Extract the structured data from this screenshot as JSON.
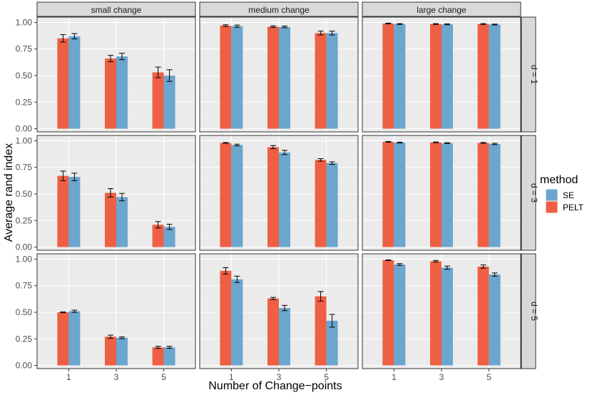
{
  "chart_data": {
    "type": "bar",
    "title": "",
    "xlabel": "Number of Change−points",
    "ylabel": "Average rand index",
    "categories": [
      "1",
      "3",
      "5"
    ],
    "yticks": [
      "0.00",
      "0.25",
      "0.50",
      "0.75",
      "1.00"
    ],
    "ylim": [
      -0.03,
      1.05
    ],
    "columns": [
      "small change",
      "medium change",
      "large change"
    ],
    "rows": [
      "d = 1",
      "d = 3",
      "d = 5"
    ],
    "legend": {
      "title": "method",
      "position": "right",
      "entries": [
        {
          "name": "SE",
          "color": "#6BA6CF"
        },
        {
          "name": "PELT",
          "color": "#EE5F44"
        }
      ]
    },
    "panels": [
      {
        "row": "d = 1",
        "column": "small change",
        "series": [
          {
            "name": "PELT",
            "values": [
              0.85,
              0.66,
              0.53
            ],
            "errors": [
              0.035,
              0.03,
              0.05
            ]
          },
          {
            "name": "SE",
            "values": [
              0.87,
              0.68,
              0.5
            ],
            "errors": [
              0.025,
              0.03,
              0.055
            ]
          }
        ]
      },
      {
        "row": "d = 1",
        "column": "medium change",
        "series": [
          {
            "name": "PELT",
            "values": [
              0.97,
              0.96,
              0.9
            ],
            "errors": [
              0.008,
              0.008,
              0.018
            ]
          },
          {
            "name": "SE",
            "values": [
              0.965,
              0.958,
              0.9
            ],
            "errors": [
              0.01,
              0.008,
              0.018
            ]
          }
        ]
      },
      {
        "row": "d = 1",
        "column": "large change",
        "series": [
          {
            "name": "PELT",
            "values": [
              0.99,
              0.985,
              0.985
            ],
            "errors": [
              0.004,
              0.004,
              0.004
            ]
          },
          {
            "name": "SE",
            "values": [
              0.985,
              0.982,
              0.98
            ],
            "errors": [
              0.004,
              0.004,
              0.004
            ]
          }
        ]
      },
      {
        "row": "d = 3",
        "column": "small change",
        "series": [
          {
            "name": "PELT",
            "values": [
              0.67,
              0.51,
              0.21
            ],
            "errors": [
              0.045,
              0.04,
              0.03
            ]
          },
          {
            "name": "SE",
            "values": [
              0.66,
              0.47,
              0.19
            ],
            "errors": [
              0.035,
              0.035,
              0.025
            ]
          }
        ]
      },
      {
        "row": "d = 3",
        "column": "medium change",
        "series": [
          {
            "name": "PELT",
            "values": [
              0.98,
              0.94,
              0.82
            ],
            "errors": [
              0.004,
              0.015,
              0.012
            ]
          },
          {
            "name": "SE",
            "values": [
              0.96,
              0.89,
              0.79
            ],
            "errors": [
              0.008,
              0.02,
              0.012
            ]
          }
        ]
      },
      {
        "row": "d = 3",
        "column": "large change",
        "series": [
          {
            "name": "PELT",
            "values": [
              0.99,
              0.985,
              0.98
            ],
            "errors": [
              0.004,
              0.004,
              0.004
            ]
          },
          {
            "name": "SE",
            "values": [
              0.983,
              0.978,
              0.97
            ],
            "errors": [
              0.004,
              0.004,
              0.006
            ]
          }
        ]
      },
      {
        "row": "d = 5",
        "column": "small change",
        "series": [
          {
            "name": "PELT",
            "values": [
              0.5,
              0.27,
              0.17
            ],
            "errors": [
              0.004,
              0.015,
              0.01
            ]
          },
          {
            "name": "SE",
            "values": [
              0.51,
              0.26,
              0.17
            ],
            "errors": [
              0.01,
              0.008,
              0.01
            ]
          }
        ]
      },
      {
        "row": "d = 5",
        "column": "medium change",
        "series": [
          {
            "name": "PELT",
            "values": [
              0.89,
              0.63,
              0.65
            ],
            "errors": [
              0.03,
              0.01,
              0.045
            ]
          },
          {
            "name": "SE",
            "values": [
              0.81,
              0.54,
              0.42
            ],
            "errors": [
              0.03,
              0.025,
              0.06
            ]
          }
        ]
      },
      {
        "row": "d = 5",
        "column": "large change",
        "series": [
          {
            "name": "PELT",
            "values": [
              0.99,
              0.98,
              0.93
            ],
            "errors": [
              0.004,
              0.008,
              0.015
            ]
          },
          {
            "name": "SE",
            "values": [
              0.95,
              0.92,
              0.855
            ],
            "errors": [
              0.008,
              0.015,
              0.015
            ]
          }
        ]
      }
    ]
  }
}
